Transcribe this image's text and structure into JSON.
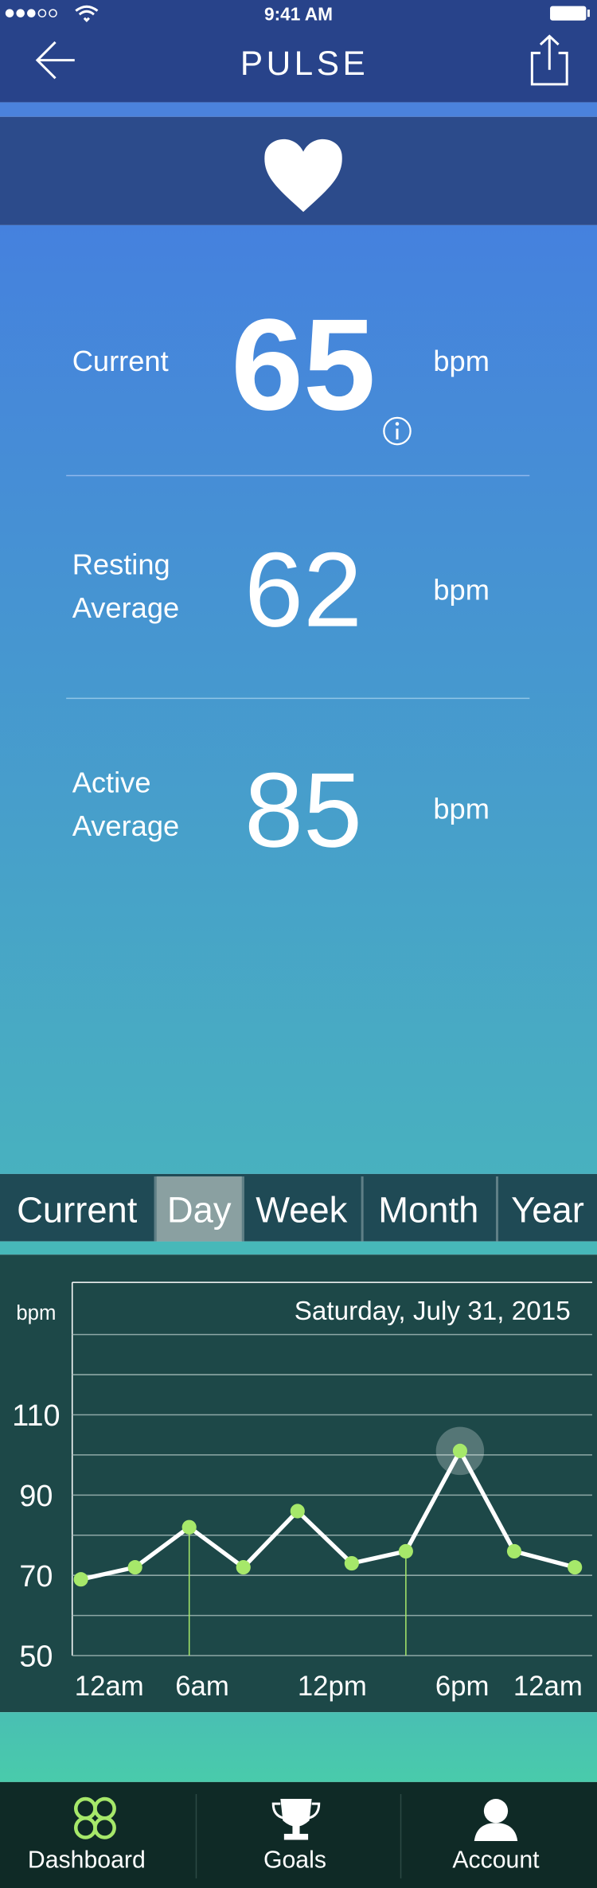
{
  "status_bar": {
    "time": "9:41 AM"
  },
  "header": {
    "title": "PULSE"
  },
  "stats": [
    {
      "label": [
        "Current"
      ],
      "value": 65,
      "unit": "bpm"
    },
    {
      "label": [
        "Resting",
        "Average"
      ],
      "value": 62,
      "unit": "bpm"
    },
    {
      "label": [
        "Active",
        "Average"
      ],
      "value": 85,
      "unit": "bpm"
    }
  ],
  "tabs": {
    "items": [
      "Current",
      "Day",
      "Week",
      "Month",
      "Year"
    ],
    "selected": 1
  },
  "chart_data": {
    "type": "line",
    "title": "Saturday, July 31, 2015",
    "y_label": "bpm",
    "x": [
      0.4,
      2.9,
      5.4,
      7.9,
      10.4,
      12.9,
      15.4,
      17.9,
      20.4,
      23.2
    ],
    "values": [
      69,
      72,
      82,
      72,
      86,
      73,
      76,
      101,
      76,
      72
    ],
    "xlim": [
      0,
      24
    ],
    "xticks": [
      {
        "value": 0,
        "label": "12am"
      },
      {
        "value": 6,
        "label": "6am"
      },
      {
        "value": 12,
        "label": "12pm"
      },
      {
        "value": 18,
        "label": "6pm"
      },
      {
        "value": 24,
        "label": "12am"
      }
    ],
    "ylim": [
      50,
      143
    ],
    "yticks": [
      50,
      70,
      90,
      110
    ],
    "minor_yticks": [
      60,
      80,
      100,
      120,
      130
    ],
    "grid": true,
    "line_color": "#ffffff",
    "point_color": "#a6e86a",
    "guide_points": [
      2,
      6
    ],
    "highlight_point": 7
  },
  "nav": {
    "items": [
      "Dashboard",
      "Goals",
      "Account"
    ],
    "selected": 0
  }
}
